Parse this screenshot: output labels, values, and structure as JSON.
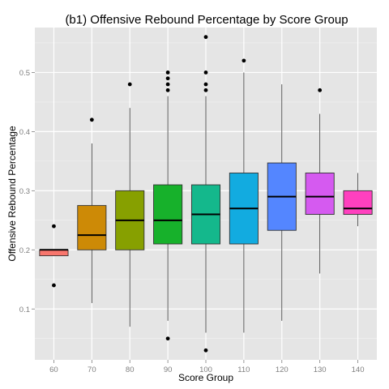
{
  "chart_data": {
    "type": "boxplot",
    "title": "(b1) Offensive Rebound Percentage by Score Group",
    "xlabel": "Score Group",
    "ylabel": "Offensive Rebound Percentage",
    "categories": [
      "60",
      "70",
      "80",
      "90",
      "100",
      "110",
      "120",
      "130",
      "140"
    ],
    "yticks": [
      "0.1",
      "0.2",
      "0.3",
      "0.4",
      "0.5"
    ],
    "ytick_values": [
      0.1,
      0.2,
      0.3,
      0.4,
      0.5
    ],
    "ylim": [
      0.014,
      0.576
    ],
    "grid": true,
    "legend": "none",
    "colors": {
      "panel_bg": "#E5E5E5",
      "grid_major": "#FFFFFF",
      "grid_minor": "#F2F2F2",
      "box_border": "#333333",
      "tick_text": "#7F7F7F"
    },
    "boxes": [
      {
        "category": "60",
        "fill": "#F8766D",
        "whisker_low": 0.19,
        "q1": 0.19,
        "median": 0.2,
        "q3": 0.2,
        "whisker_high": 0.2,
        "outliers": [
          0.24,
          0.14
        ]
      },
      {
        "category": "70",
        "fill": "#CD8A06",
        "whisker_low": 0.11,
        "q1": 0.2,
        "median": 0.225,
        "q3": 0.275,
        "whisker_high": 0.38,
        "outliers": [
          0.42
        ]
      },
      {
        "category": "80",
        "fill": "#87A000",
        "whisker_low": 0.07,
        "q1": 0.2,
        "median": 0.25,
        "q3": 0.3,
        "whisker_high": 0.44,
        "outliers": [
          0.48
        ]
      },
      {
        "category": "90",
        "fill": "#17B12B",
        "whisker_low": 0.08,
        "q1": 0.21,
        "median": 0.25,
        "q3": 0.31,
        "whisker_high": 0.46,
        "outliers": [
          0.47,
          0.48,
          0.49,
          0.5,
          0.05
        ]
      },
      {
        "category": "100",
        "fill": "#14B88C",
        "whisker_low": 0.06,
        "q1": 0.21,
        "median": 0.26,
        "q3": 0.31,
        "whisker_high": 0.46,
        "outliers": [
          0.47,
          0.48,
          0.5,
          0.56,
          0.03
        ]
      },
      {
        "category": "110",
        "fill": "#12ABE0",
        "whisker_low": 0.06,
        "q1": 0.21,
        "median": 0.27,
        "q3": 0.33,
        "whisker_high": 0.5,
        "outliers": [
          0.52
        ]
      },
      {
        "category": "120",
        "fill": "#5486FF",
        "whisker_low": 0.08,
        "q1": 0.233,
        "median": 0.29,
        "q3": 0.347,
        "whisker_high": 0.48,
        "outliers": []
      },
      {
        "category": "130",
        "fill": "#D55AF0",
        "whisker_low": 0.16,
        "q1": 0.26,
        "median": 0.29,
        "q3": 0.33,
        "whisker_high": 0.43,
        "outliers": [
          0.47
        ]
      },
      {
        "category": "140",
        "fill": "#FF40BF",
        "whisker_low": 0.24,
        "q1": 0.26,
        "median": 0.27,
        "q3": 0.3,
        "whisker_high": 0.33,
        "outliers": []
      }
    ]
  }
}
